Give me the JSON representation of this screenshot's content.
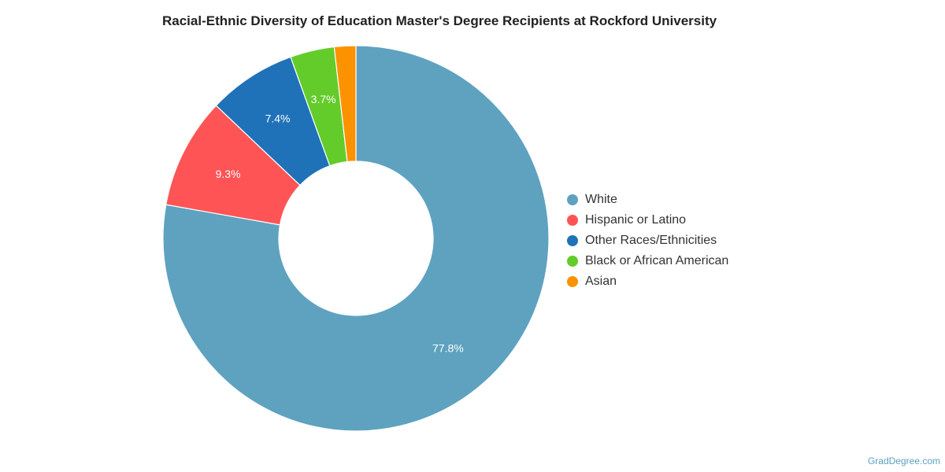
{
  "title": "Racial-Ethnic Diversity of Education Master's Degree Recipients at Rockford University",
  "footer": "GradDegree.com",
  "chart_data": {
    "type": "pie",
    "style": "donut",
    "title": "Racial-Ethnic Diversity of Education Master's Degree Recipients at Rockford University",
    "legend_position": "right",
    "slices": [
      {
        "name": "White",
        "value": 77.8,
        "label": "77.8%",
        "color": "#5ea2c0"
      },
      {
        "name": "Hispanic or Latino",
        "value": 9.3,
        "label": "9.3%",
        "color": "#fe5455"
      },
      {
        "name": "Other Races/Ethnicities",
        "value": 7.4,
        "label": "7.4%",
        "color": "#1f72b8"
      },
      {
        "name": "Black or African American",
        "value": 3.7,
        "label": "3.7%",
        "color": "#63cc2a"
      },
      {
        "name": "Asian",
        "value": 1.8,
        "label": "",
        "color": "#fd9200"
      }
    ]
  }
}
